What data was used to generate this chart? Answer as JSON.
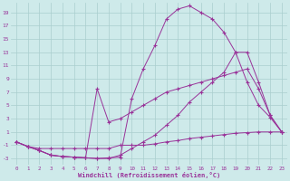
{
  "bg_color": "#ceeaea",
  "grid_color": "#aacece",
  "line_color": "#993399",
  "xlabel": "Windchill (Refroidissement éolien,°C)",
  "ylabel_ticks": [
    -3,
    -1,
    1,
    3,
    5,
    7,
    9,
    11,
    13,
    15,
    17,
    19
  ],
  "xlabel_ticks": [
    0,
    1,
    2,
    3,
    4,
    5,
    6,
    7,
    8,
    9,
    10,
    11,
    12,
    13,
    14,
    15,
    16,
    17,
    18,
    19,
    20,
    21,
    22,
    23
  ],
  "xlim": [
    -0.5,
    23.5
  ],
  "ylim": [
    -4.0,
    20.5
  ],
  "line1_x": [
    0,
    1,
    2,
    3,
    4,
    5,
    6,
    7,
    8,
    9,
    10,
    11,
    12,
    13,
    14,
    15,
    16,
    17,
    18,
    19,
    20,
    21,
    22,
    23
  ],
  "line1_y": [
    -0.5,
    -1.2,
    -1.5,
    -1.5,
    -1.5,
    -1.5,
    -1.5,
    -1.5,
    -1.5,
    -1.0,
    -1.0,
    -1.0,
    -0.8,
    -0.5,
    -0.3,
    0.0,
    0.2,
    0.4,
    0.6,
    0.8,
    0.9,
    1.0,
    1.0,
    1.0
  ],
  "line2_x": [
    0,
    1,
    2,
    3,
    4,
    5,
    6,
    7,
    8,
    9,
    10,
    11,
    12,
    13,
    14,
    15,
    16,
    17,
    18,
    19,
    20,
    21,
    22,
    23
  ],
  "line2_y": [
    -0.5,
    -1.2,
    -1.8,
    -2.5,
    -2.7,
    -2.8,
    -2.9,
    7.5,
    2.5,
    3.0,
    4.0,
    5.0,
    6.0,
    7.0,
    7.5,
    8.0,
    8.5,
    9.0,
    9.5,
    10.0,
    10.5,
    7.5,
    3.5,
    1.0
  ],
  "line3_x": [
    0,
    1,
    2,
    3,
    4,
    5,
    6,
    7,
    8,
    9,
    10,
    11,
    12,
    13,
    14,
    15,
    16,
    17,
    18,
    19,
    20,
    21,
    22,
    23
  ],
  "line3_y": [
    -0.5,
    -1.2,
    -1.8,
    -2.5,
    -2.7,
    -2.8,
    -2.9,
    -3.0,
    -2.9,
    -2.8,
    6.0,
    10.5,
    14.0,
    18.0,
    19.5,
    20.0,
    19.0,
    18.0,
    16.0,
    13.0,
    8.5,
    5.0,
    3.2,
    1.0
  ],
  "line4_x": [
    0,
    1,
    2,
    3,
    4,
    5,
    6,
    7,
    8,
    9,
    10,
    11,
    12,
    13,
    14,
    15,
    16,
    17,
    18,
    19,
    20,
    21,
    22,
    23
  ],
  "line4_y": [
    -0.5,
    -1.2,
    -1.8,
    -2.5,
    -2.7,
    -2.8,
    -2.9,
    -3.0,
    -3.0,
    -2.5,
    -1.5,
    -0.5,
    0.5,
    2.0,
    3.5,
    5.5,
    7.0,
    8.5,
    10.0,
    13.0,
    13.0,
    8.5,
    3.5,
    1.0
  ]
}
